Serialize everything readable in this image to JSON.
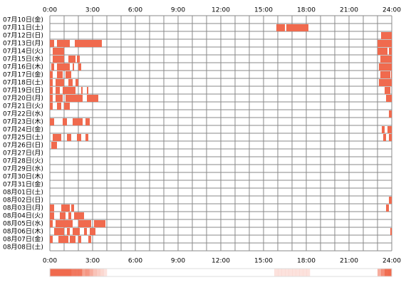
{
  "chart_data": {
    "type": "timeline",
    "color": "#f06a4e",
    "xlim": [
      0,
      24
    ],
    "xticks": [
      {
        "value": 0,
        "label": "0:00"
      },
      {
        "value": 3,
        "label": "3:00"
      },
      {
        "value": 6,
        "label": "6:00"
      },
      {
        "value": 9,
        "label": "9:00"
      },
      {
        "value": 12,
        "label": "12:00"
      },
      {
        "value": 15,
        "label": "15:00"
      },
      {
        "value": 18,
        "label": "18:00"
      },
      {
        "value": 21,
        "label": "21:00"
      },
      {
        "value": 24,
        "label": "24:00"
      }
    ],
    "categories": [
      "07月10日(金)",
      "07月11日(土)",
      "07月12日(日)",
      "07月13日(月)",
      "07月14日(火)",
      "07月15日(水)",
      "07月16日(木)",
      "07月17日(金)",
      "07月18日(土)",
      "07月19日(日)",
      "07月20日(月)",
      "07月21日(火)",
      "07月22日(水)",
      "07月23日(木)",
      "07月24日(金)",
      "07月25日(土)",
      "07月26日(日)",
      "07月27日(月)",
      "07月28日(火)",
      "07月29日(水)",
      "07月30日(木)",
      "07月31日(金)",
      "08月01日(土)",
      "08月02日(日)",
      "08月03日(月)",
      "08月04日(火)",
      "08月05日(水)",
      "08月06日(木)",
      "08月07日(金)",
      "08月08日(土)"
    ],
    "segments": [
      [],
      [
        [
          15.9,
          16.5
        ],
        [
          16.6,
          18.15
        ]
      ],
      [
        [
          23.25,
          24
        ]
      ],
      [
        [
          0,
          0.3
        ],
        [
          0.5,
          1.4
        ],
        [
          1.75,
          3.65
        ],
        [
          23.0,
          24
        ]
      ],
      [
        [
          0.2,
          1.0
        ],
        [
          23.0,
          23.7
        ],
        [
          23.8,
          24
        ]
      ],
      [
        [
          0.2,
          1.0
        ],
        [
          1.3,
          1.8
        ],
        [
          1.9,
          2.1
        ],
        [
          23.2,
          24
        ]
      ],
      [
        [
          0.1,
          0.3
        ],
        [
          0.5,
          1.4
        ],
        [
          1.6,
          1.7
        ],
        [
          2.0,
          2.2
        ],
        [
          23.1,
          24
        ]
      ],
      [
        [
          0,
          0.2
        ],
        [
          0.5,
          0.9
        ],
        [
          1.1,
          1.5
        ],
        [
          23.2,
          23.9
        ],
        [
          23.95,
          24
        ]
      ],
      [
        [
          0,
          0.2
        ],
        [
          0.4,
          1.0
        ],
        [
          1.3,
          1.6
        ],
        [
          1.8,
          2.0
        ],
        [
          23.1,
          24
        ]
      ],
      [
        [
          0,
          0.2
        ],
        [
          0.4,
          0.7
        ],
        [
          0.9,
          1.8
        ],
        [
          2.2,
          2.3
        ],
        [
          2.6,
          2.7
        ],
        [
          23.5,
          23.9
        ]
      ],
      [
        [
          0,
          0.2
        ],
        [
          0.4,
          0.9
        ],
        [
          1.1,
          2.3
        ],
        [
          2.6,
          3.4
        ],
        [
          23.6,
          24
        ]
      ],
      [
        [
          0,
          0.2
        ],
        [
          0.5,
          0.8
        ],
        [
          1.0,
          1.4
        ]
      ],
      [
        [
          23.8,
          24
        ]
      ],
      [
        [
          0,
          0.3
        ],
        [
          0.9,
          1.2
        ],
        [
          1.6,
          2.3
        ],
        [
          2.5,
          2.8
        ]
      ],
      [
        [
          23.3,
          23.5
        ],
        [
          23.7,
          24
        ]
      ],
      [
        [
          0.2,
          0.8
        ],
        [
          1.2,
          1.5
        ],
        [
          1.9,
          2.2
        ],
        [
          2.5,
          2.7
        ],
        [
          23.4,
          23.6
        ],
        [
          23.8,
          24
        ]
      ],
      [
        [
          0.1,
          0.5
        ]
      ],
      [],
      [],
      [],
      [],
      [],
      [],
      [
        [
          23.8,
          24
        ]
      ],
      [
        [
          0,
          0.3
        ],
        [
          0.8,
          1.4
        ],
        [
          1.5,
          1.7
        ],
        [
          23.6,
          23.8
        ]
      ],
      [
        [
          0,
          0.3
        ],
        [
          0.7,
          1.1
        ],
        [
          1.3,
          1.5
        ],
        [
          1.7,
          2.4
        ]
      ],
      [
        [
          0,
          0.2
        ],
        [
          0.4,
          1.6
        ],
        [
          2.0,
          2.9
        ],
        [
          3.1,
          3.9
        ]
      ],
      [
        [
          0.3,
          1.0
        ],
        [
          1.2,
          1.4
        ],
        [
          1.6,
          2.1
        ],
        [
          2.4,
          2.6
        ],
        [
          2.8,
          3.2
        ],
        [
          23.9,
          24
        ]
      ],
      [
        [
          0,
          0.2
        ],
        [
          0.6,
          1.3
        ],
        [
          1.4,
          1.8
        ],
        [
          2.0,
          2.2
        ],
        [
          2.7,
          2.9
        ]
      ],
      []
    ]
  }
}
